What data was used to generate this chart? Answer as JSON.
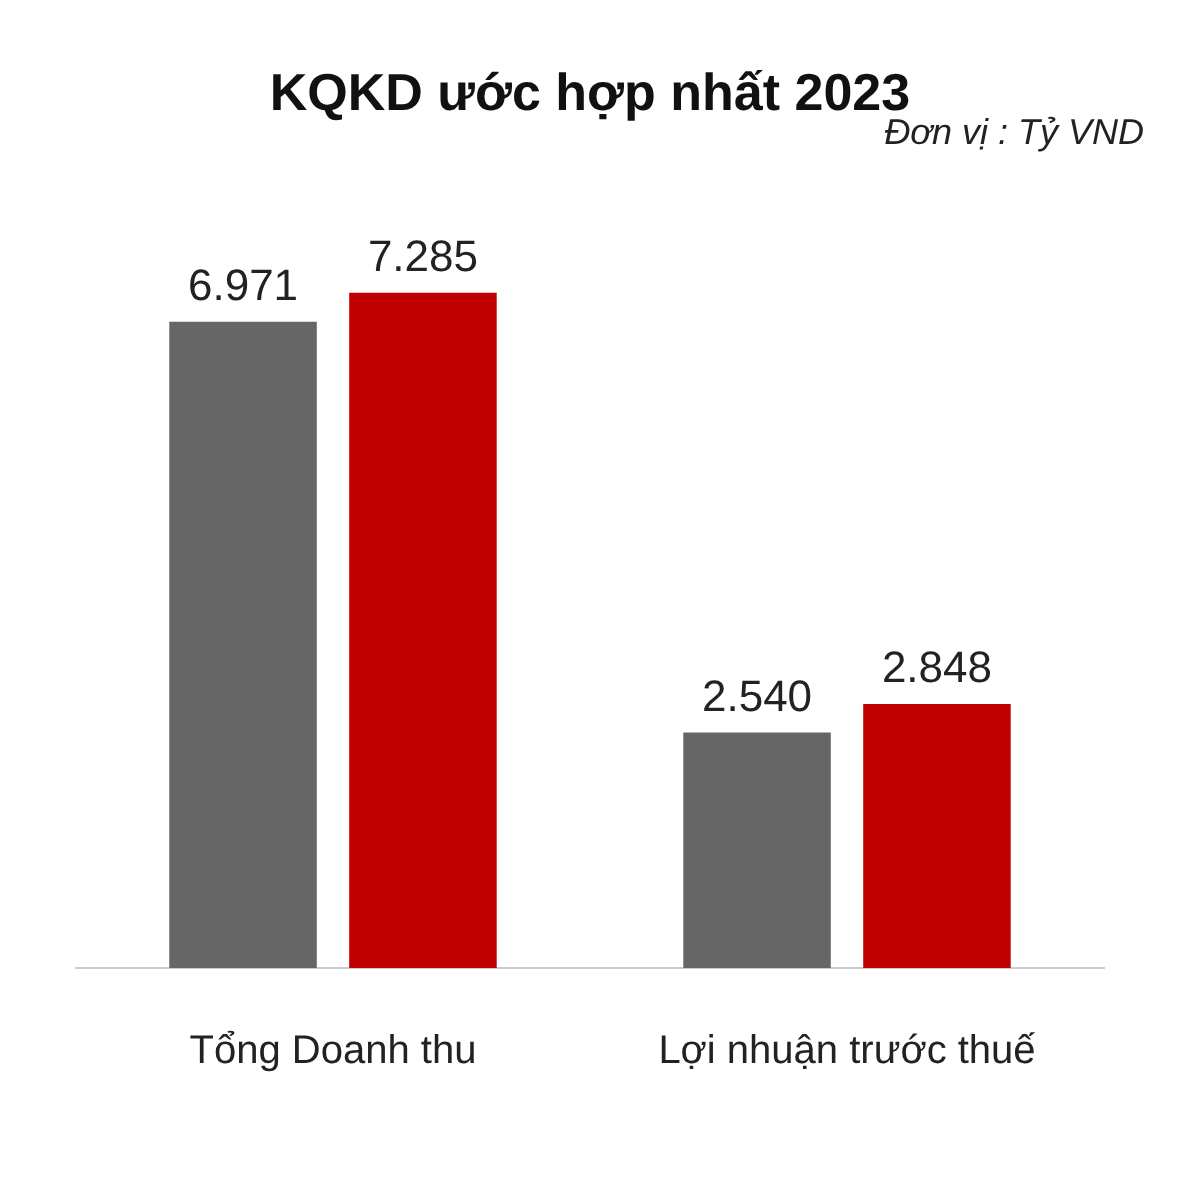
{
  "chart_data": {
    "type": "bar",
    "title": "KQKD ước hợp nhất 2023",
    "annotations": [
      "Đơn vị : Tỷ VND"
    ],
    "categories": [
      "Tổng Doanh thu",
      "Lợi nhuận trước thuế"
    ],
    "series": [
      {
        "color": "#666666",
        "values": [
          6971,
          2540
        ],
        "value_labels": [
          "6.971",
          "2.540"
        ]
      },
      {
        "color": "#c00000",
        "values": [
          7285,
          2848
        ],
        "value_labels": [
          "7.285",
          "2.848"
        ]
      }
    ],
    "grid": false,
    "legend": false
  }
}
